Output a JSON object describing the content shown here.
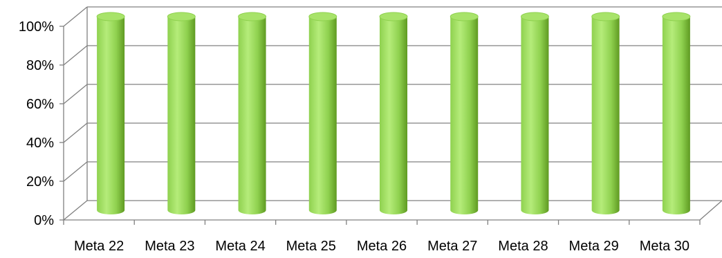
{
  "chart_data": {
    "type": "bar",
    "style": "3d-cylinder",
    "categories": [
      "Meta 22",
      "Meta 23",
      "Meta 24",
      "Meta 25",
      "Meta 26",
      "Meta 27",
      "Meta 28",
      "Meta 29",
      "Meta 30"
    ],
    "series": [
      {
        "values": [
          100,
          100,
          100,
          100,
          100,
          100,
          100,
          100,
          100
        ]
      }
    ],
    "y_ticks": [
      "0%",
      "20%",
      "40%",
      "60%",
      "80%",
      "100%"
    ],
    "ylim": [
      0,
      100
    ],
    "grid": true,
    "legend": "none",
    "colors": {
      "bar_light": "#b5ec7a",
      "bar_mid": "#8fd14f",
      "bar_dark": "#5f9a22",
      "bar_top": "#a8e36a",
      "grid": "#808080",
      "axis": "#808080"
    }
  }
}
